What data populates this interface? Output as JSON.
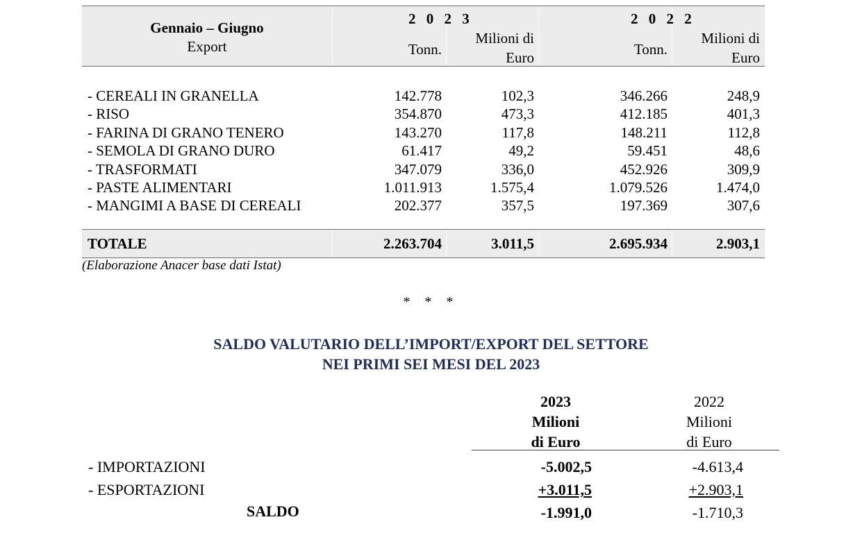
{
  "export_table": {
    "header": {
      "period_label": "Gennaio – Giugno",
      "section_label": "Export",
      "year_a": "2 0 2 3",
      "year_b": "2 0 2 2",
      "col_tonn": "Tonn.",
      "col_milioni_line1": "Milioni di",
      "col_milioni_line2": "Euro"
    },
    "rows": [
      {
        "label": "- CEREALI IN GRANELLA",
        "tonn_2023": "142.778",
        "euro_2023": "102,3",
        "tonn_2022": "346.266",
        "euro_2022": "248,9"
      },
      {
        "label": "- RISO",
        "tonn_2023": "354.870",
        "euro_2023": "473,3",
        "tonn_2022": "412.185",
        "euro_2022": "401,3"
      },
      {
        "label": "- FARINA DI GRANO TENERO",
        "tonn_2023": "143.270",
        "euro_2023": "117,8",
        "tonn_2022": "148.211",
        "euro_2022": "112,8"
      },
      {
        "label": "- SEMOLA DI GRANO DURO",
        "tonn_2023": "61.417",
        "euro_2023": "49,2",
        "tonn_2022": "59.451",
        "euro_2022": "48,6"
      },
      {
        "label": "- TRASFORMATI",
        "tonn_2023": "347.079",
        "euro_2023": "336,0",
        "tonn_2022": "452.926",
        "euro_2022": "309,9"
      },
      {
        "label": "- PASTE ALIMENTARI",
        "tonn_2023": "1.011.913",
        "euro_2023": "1.575,4",
        "tonn_2022": "1.079.526",
        "euro_2022": "1.474,0"
      },
      {
        "label": "- MANGIMI A BASE DI CEREALI",
        "tonn_2023": "202.377",
        "euro_2023": "357,5",
        "tonn_2022": "197.369",
        "euro_2022": "307,6"
      }
    ],
    "total": {
      "label": "TOTALE",
      "tonn_2023": "2.263.704",
      "euro_2023": "3.011,5",
      "tonn_2022": "2.695.934",
      "euro_2022": "2.903,1"
    },
    "source_note": "(Elaborazione Anacer base dati Istat)"
  },
  "separator": "* * *",
  "saldo": {
    "title_line1": "SALDO VALUTARIO DELL’IMPORT/EXPORT DEL SETTORE",
    "title_line2": "NEI PRIMI SEI MESI DEL 2023",
    "col_2023": {
      "year": "2023",
      "line1": "Milioni",
      "line2": "di Euro"
    },
    "col_2022": {
      "year": "2022",
      "line1": "Milioni",
      "line2": "di Euro"
    },
    "rows": [
      {
        "label": "- IMPORTAZIONI",
        "v2023": "-5.002,5",
        "v2022": "-4.613,4"
      },
      {
        "label": "- ESPORTAZIONI",
        "v2023": "+3.011,5",
        "v2022": "+2.903,1"
      }
    ],
    "result": {
      "label": "SALDO",
      "v2023": "-1.991,0",
      "v2022": "-1.710,3"
    }
  }
}
